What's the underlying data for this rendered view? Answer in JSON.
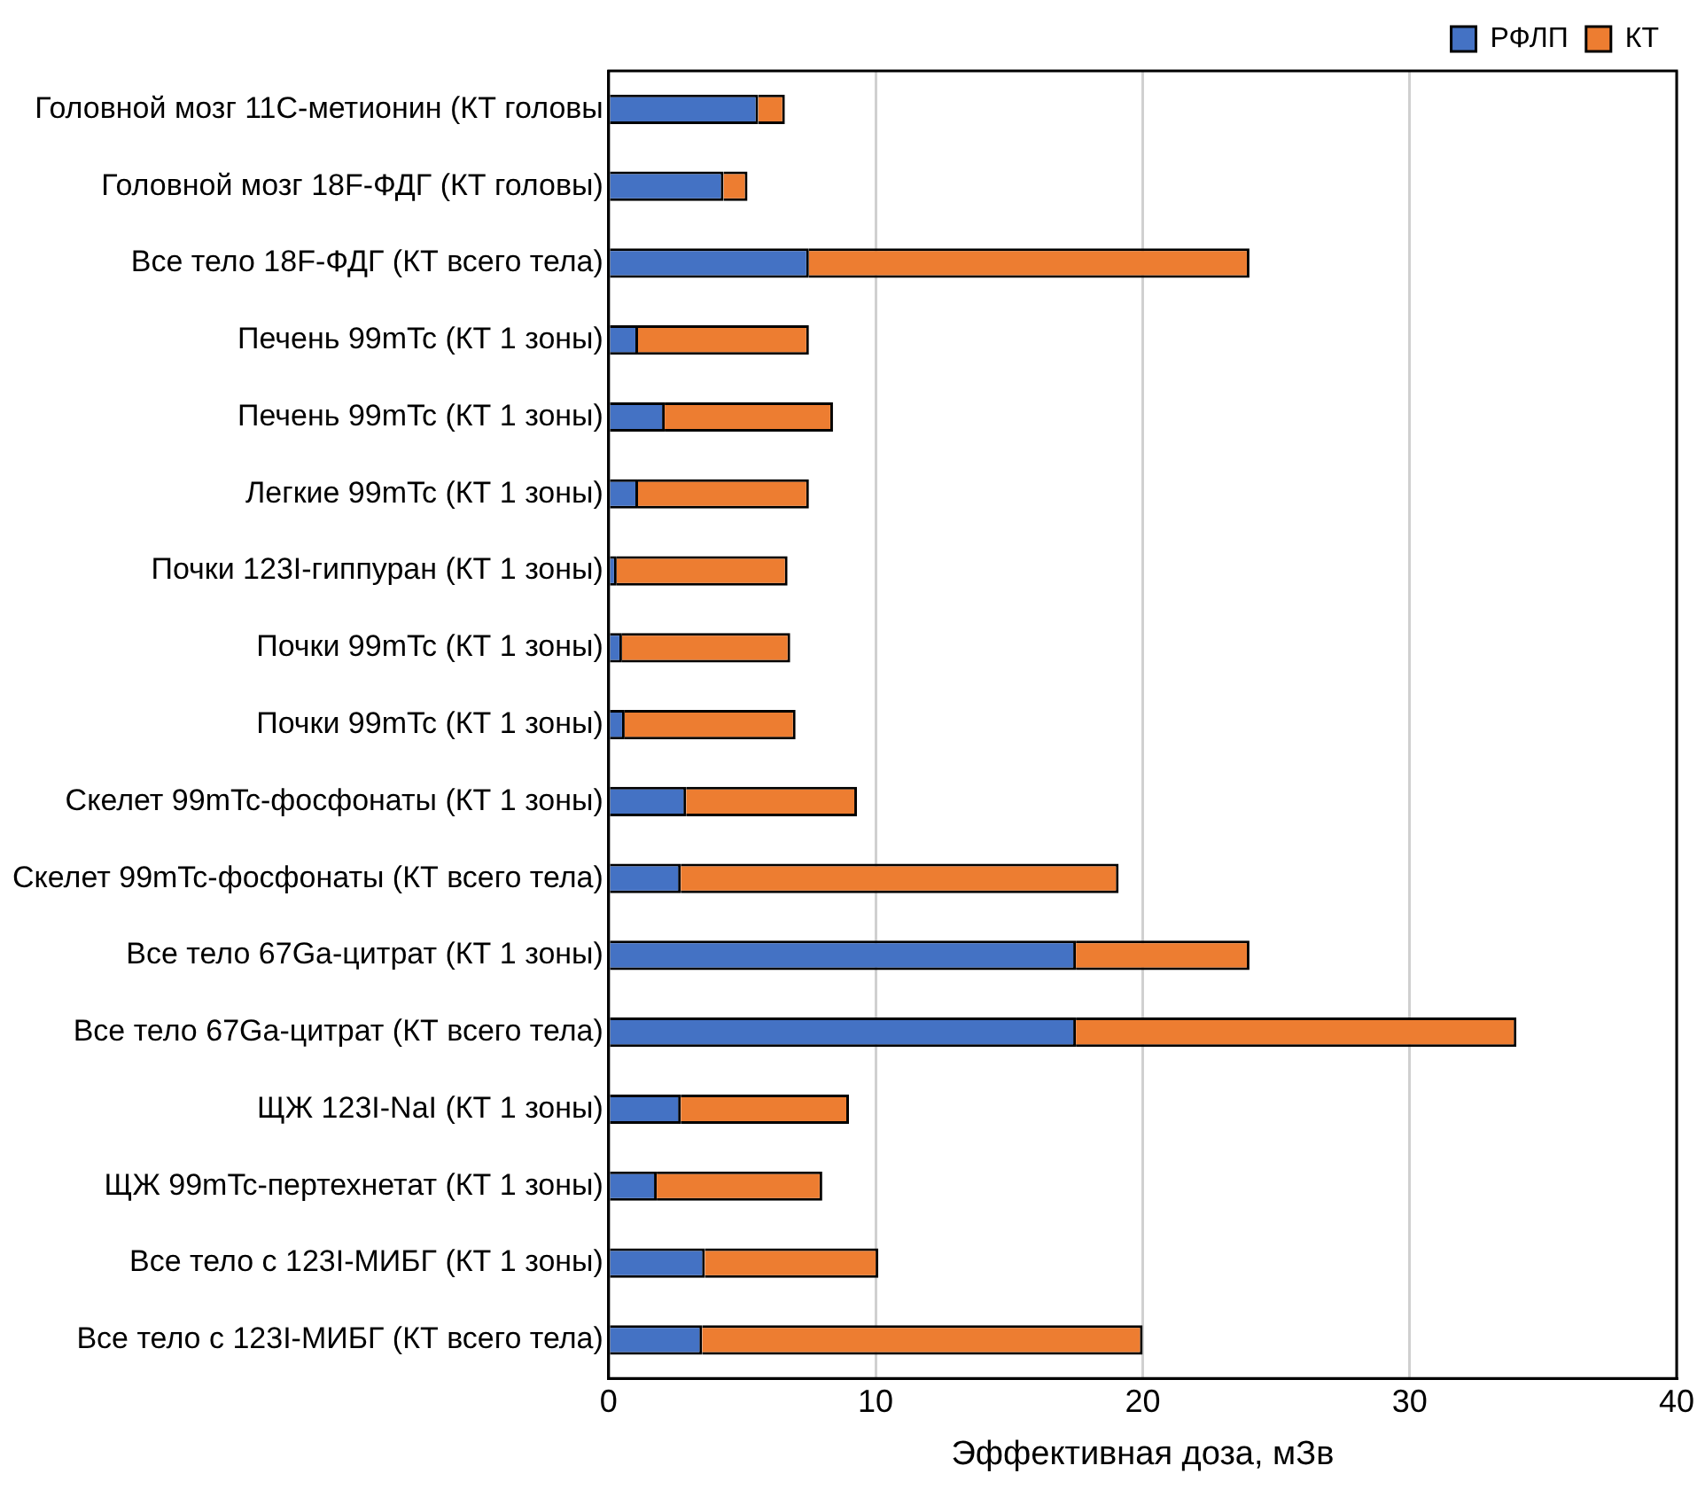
{
  "chart_data": {
    "type": "bar",
    "orientation": "horizontal",
    "stacked": true,
    "xlabel": "Эффективная доза, мЗв",
    "categories": [
      "Головной мозг 11C-метионин (КТ головы",
      "Головной мозг 18F-ФДГ (КТ головы)",
      "Все тело 18F-ФДГ (КТ всего тела)",
      "Печень 99mTc (КТ 1 зоны)",
      "Печень 99mTc (КТ 1 зоны)",
      "Легкие 99mTc (КТ 1 зоны)",
      "Почки 123I-гиппуран (КТ 1 зоны)",
      "Почки 99mTc (КТ 1 зоны)",
      "Почки 99mTc (КТ 1 зоны)",
      "Скелет 99mTc-фосфонаты (КТ 1 зоны)",
      "Скелет 99mTc-фосфонаты (КТ всего тела)",
      "Все тело 67Ga-цитрат (КТ 1 зоны)",
      "Все тело 67Ga-цитрат (КТ всего тела)",
      "ЩЖ 123I-NaI (КТ 1 зоны)",
      "ЩЖ 99mTc-пертехнетат (КТ 1 зоны)",
      "Все тело с 123I-МИБГ (КТ 1 зоны)",
      "Все тело с 123I-МИБГ (КТ всего тела)"
    ],
    "series": [
      {
        "name": "РФЛП",
        "color": "#4472c4",
        "values": [
          5.6,
          4.3,
          7.5,
          1.1,
          2.1,
          1.1,
          0.3,
          0.5,
          0.6,
          2.9,
          2.7,
          17.5,
          17.5,
          2.7,
          1.8,
          3.6,
          3.5
        ]
      },
      {
        "name": "КТ",
        "color": "#ed7d31",
        "values": [
          1.0,
          0.9,
          16.5,
          6.4,
          6.3,
          6.4,
          6.4,
          6.3,
          6.4,
          6.4,
          16.4,
          6.5,
          16.5,
          6.3,
          6.2,
          6.5,
          16.5
        ]
      }
    ],
    "xlim": [
      0,
      40
    ],
    "xticks": [
      0,
      10,
      20,
      30,
      40
    ],
    "grid": "x",
    "legend": "top right"
  }
}
